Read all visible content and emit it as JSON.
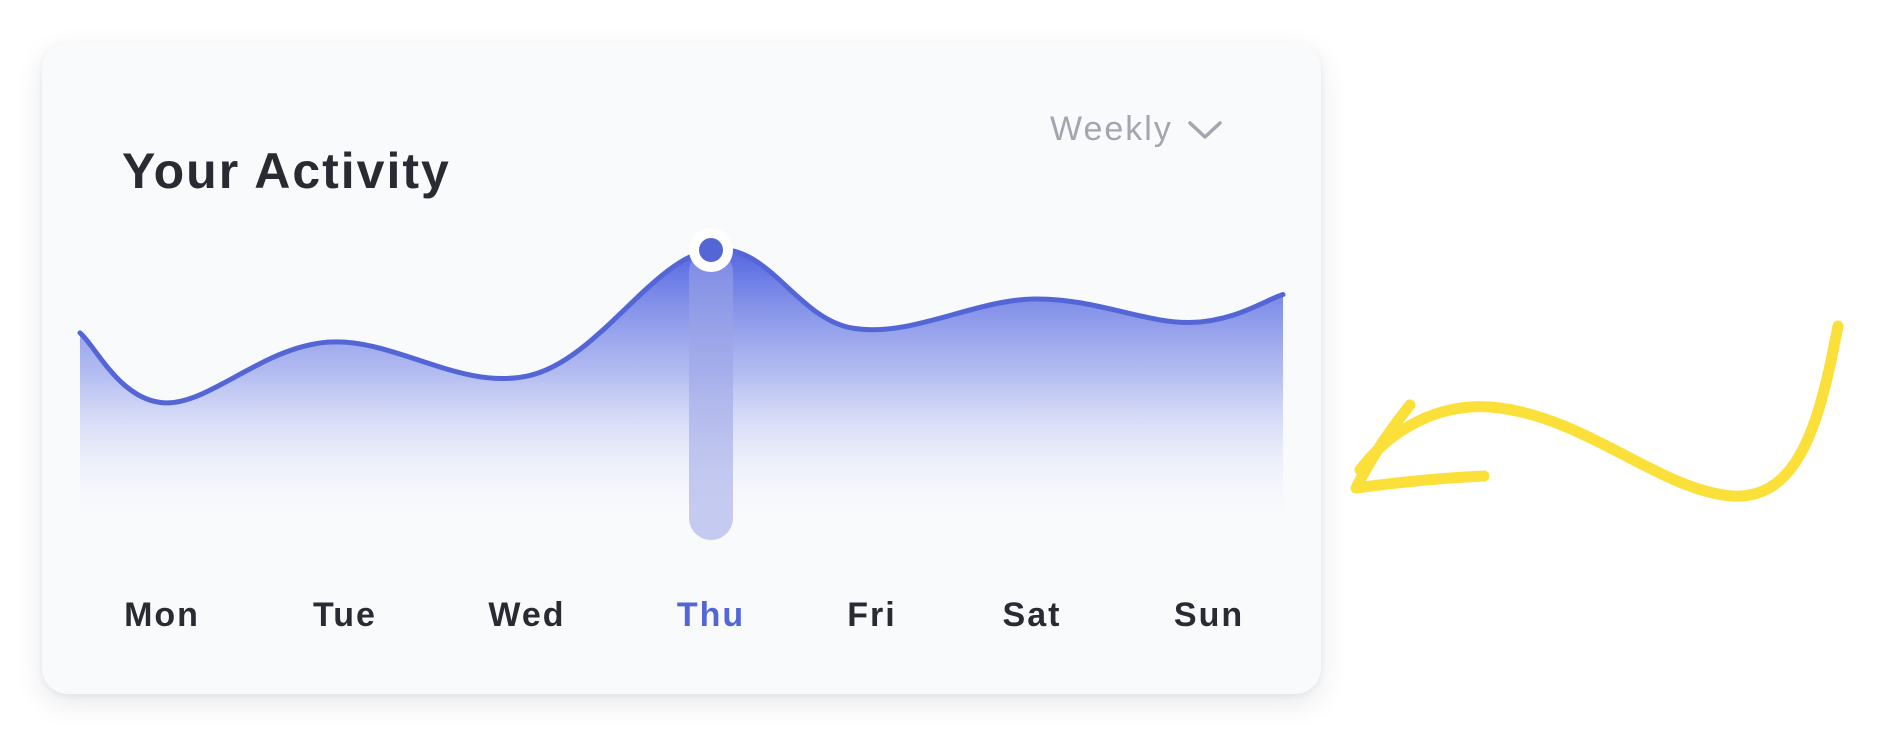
{
  "card": {
    "title": "Your Activity",
    "period_select": {
      "selected": "Weekly",
      "icon": "chevron-down-icon"
    }
  },
  "chart_data": {
    "type": "area",
    "categories": [
      "Mon",
      "Tue",
      "Wed",
      "Thu",
      "Fri",
      "Sat",
      "Sun"
    ],
    "values": [
      22,
      53,
      36,
      100,
      60,
      75,
      63
    ],
    "highlighted_category": "Thu",
    "title": "",
    "xlabel": "",
    "ylabel": "",
    "ylim": [
      0,
      100
    ],
    "grid": false,
    "legend": "none"
  },
  "colors": {
    "accent": "#5466d6",
    "label": "#2a2a33",
    "muted": "#a3a6ae",
    "annotation": "#fbe03a"
  },
  "decoration": {
    "icon": "hand-drawn-arrow-icon"
  }
}
